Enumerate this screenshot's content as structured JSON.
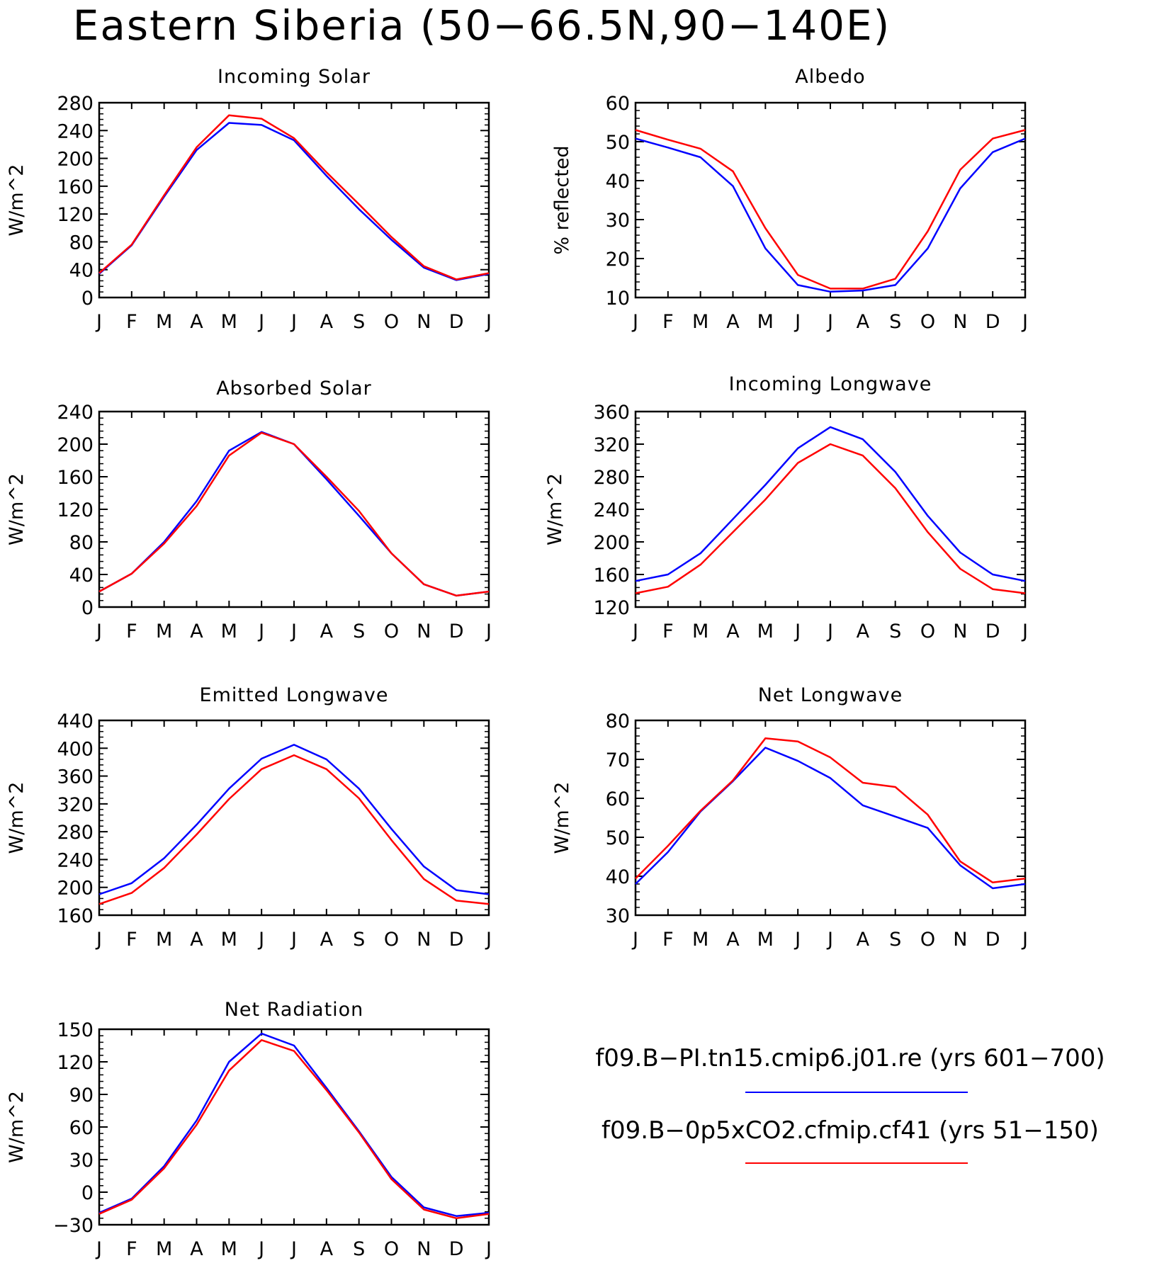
{
  "figure": {
    "title": "Eastern Siberia (50-66.5N,90-140E)"
  },
  "legend": {
    "entries": [
      {
        "label": "f09.B-PI.tn15.cmip6.j01.re (yrs 601-700)",
        "color": "#0000ff"
      },
      {
        "label": "f09.B-0p5xCO2.cfmip.cf41 (yrs 51-150)",
        "color": "#ff0000"
      }
    ],
    "placement": "bottom-right"
  },
  "colors": {
    "series_blue": "#0000ff",
    "series_red": "#ff0000",
    "axes": "#000000"
  },
  "chart_data": [
    {
      "type": "line",
      "title": "Incoming Solar",
      "ylabel": "W/m^2",
      "categories": [
        "J",
        "F",
        "M",
        "A",
        "M",
        "J",
        "J",
        "A",
        "S",
        "O",
        "N",
        "D",
        "J"
      ],
      "ylim": [
        0,
        280
      ],
      "yticks": [
        0,
        40,
        80,
        120,
        160,
        200,
        240,
        280
      ],
      "grid": false,
      "series": [
        {
          "color": "#0000ff",
          "values": [
            34,
            75,
            145,
            212,
            251,
            248,
            226,
            175,
            127,
            83,
            43,
            25,
            34
          ]
        },
        {
          "color": "#ff0000",
          "values": [
            35,
            76,
            147,
            216,
            262,
            257,
            229,
            180,
            134,
            87,
            45,
            26,
            35
          ]
        }
      ]
    },
    {
      "type": "line",
      "title": "Albedo",
      "ylabel": "% reflected",
      "categories": [
        "J",
        "F",
        "M",
        "A",
        "M",
        "J",
        "J",
        "A",
        "S",
        "O",
        "N",
        "D",
        "J"
      ],
      "ylim": [
        10,
        60
      ],
      "yticks": [
        10,
        20,
        30,
        40,
        50,
        60
      ],
      "grid": false,
      "series": [
        {
          "color": "#0000ff",
          "values": [
            50.8,
            48.5,
            46.0,
            38.6,
            22.6,
            13.2,
            11.5,
            11.8,
            13.2,
            22.6,
            38.0,
            47.3,
            50.8
          ]
        },
        {
          "color": "#ff0000",
          "values": [
            53.0,
            50.5,
            48.2,
            42.4,
            27.8,
            15.8,
            12.3,
            12.3,
            14.8,
            27.0,
            42.8,
            50.8,
            53.0
          ]
        }
      ]
    },
    {
      "type": "line",
      "title": "Absorbed Solar",
      "ylabel": "W/m^2",
      "categories": [
        "J",
        "F",
        "M",
        "A",
        "M",
        "J",
        "J",
        "A",
        "S",
        "O",
        "N",
        "D",
        "J"
      ],
      "ylim": [
        0,
        240
      ],
      "yticks": [
        0,
        40,
        80,
        120,
        160,
        200,
        240
      ],
      "grid": false,
      "series": [
        {
          "color": "#0000ff",
          "values": [
            19,
            41,
            80,
            130,
            192,
            215,
            200,
            157,
            112,
            66,
            28,
            14,
            19
          ]
        },
        {
          "color": "#ff0000",
          "values": [
            19,
            41,
            78,
            124,
            186,
            214,
            200,
            160,
            118,
            66,
            28,
            14,
            19
          ]
        }
      ]
    },
    {
      "type": "line",
      "title": "Incoming Longwave",
      "ylabel": "W/m^2",
      "categories": [
        "J",
        "F",
        "M",
        "A",
        "M",
        "J",
        "J",
        "A",
        "S",
        "O",
        "N",
        "D",
        "J"
      ],
      "ylim": [
        120,
        360
      ],
      "yticks": [
        120,
        160,
        200,
        240,
        280,
        320,
        360
      ],
      "grid": false,
      "series": [
        {
          "color": "#0000ff",
          "values": [
            152,
            160,
            186,
            228,
            270,
            315,
            341,
            326,
            286,
            232,
            187,
            160,
            152
          ]
        },
        {
          "color": "#ff0000",
          "values": [
            137,
            145,
            172,
            212,
            252,
            297,
            320,
            306,
            266,
            212,
            167,
            142,
            137
          ]
        }
      ]
    },
    {
      "type": "line",
      "title": "Emitted Longwave",
      "ylabel": "W/m^2",
      "categories": [
        "J",
        "F",
        "M",
        "A",
        "M",
        "J",
        "J",
        "A",
        "S",
        "O",
        "N",
        "D",
        "J"
      ],
      "ylim": [
        160,
        440
      ],
      "yticks": [
        160,
        200,
        240,
        280,
        320,
        360,
        400,
        440
      ],
      "grid": false,
      "series": [
        {
          "color": "#0000ff",
          "values": [
            190,
            206,
            242,
            290,
            342,
            385,
            405,
            384,
            342,
            284,
            230,
            196,
            190
          ]
        },
        {
          "color": "#ff0000",
          "values": [
            176,
            192,
            228,
            276,
            327,
            370,
            390,
            370,
            328,
            268,
            212,
            181,
            176
          ]
        }
      ]
    },
    {
      "type": "line",
      "title": "Net Longwave",
      "ylabel": "W/m^2",
      "categories": [
        "J",
        "F",
        "M",
        "A",
        "M",
        "J",
        "J",
        "A",
        "S",
        "O",
        "N",
        "D",
        "J"
      ],
      "ylim": [
        30,
        80
      ],
      "yticks": [
        30,
        40,
        50,
        60,
        70,
        80
      ],
      "grid": false,
      "series": [
        {
          "color": "#0000ff",
          "values": [
            38.0,
            46.2,
            56.6,
            64.4,
            73.0,
            69.6,
            65.2,
            58.2,
            55.3,
            52.4,
            42.8,
            36.9,
            38.0
          ]
        },
        {
          "color": "#ff0000",
          "values": [
            39.4,
            47.8,
            56.8,
            64.6,
            75.4,
            74.6,
            70.5,
            64.0,
            62.9,
            55.8,
            43.8,
            38.4,
            39.4
          ]
        }
      ]
    },
    {
      "type": "line",
      "title": "Net Radiation",
      "ylabel": "W/m^2",
      "categories": [
        "J",
        "F",
        "M",
        "A",
        "M",
        "J",
        "J",
        "A",
        "S",
        "O",
        "N",
        "D",
        "J"
      ],
      "ylim": [
        -30,
        150
      ],
      "yticks": [
        -30,
        0,
        30,
        60,
        90,
        120,
        150
      ],
      "grid": false,
      "series": [
        {
          "color": "#0000ff",
          "values": [
            -19,
            -6,
            24,
            66,
            120,
            146,
            135,
            96,
            56,
            14,
            -14,
            -22,
            -19
          ]
        },
        {
          "color": "#ff0000",
          "values": [
            -20,
            -7,
            22,
            62,
            112,
            140,
            130,
            94,
            55,
            12,
            -16,
            -24,
            -20
          ]
        }
      ]
    }
  ]
}
